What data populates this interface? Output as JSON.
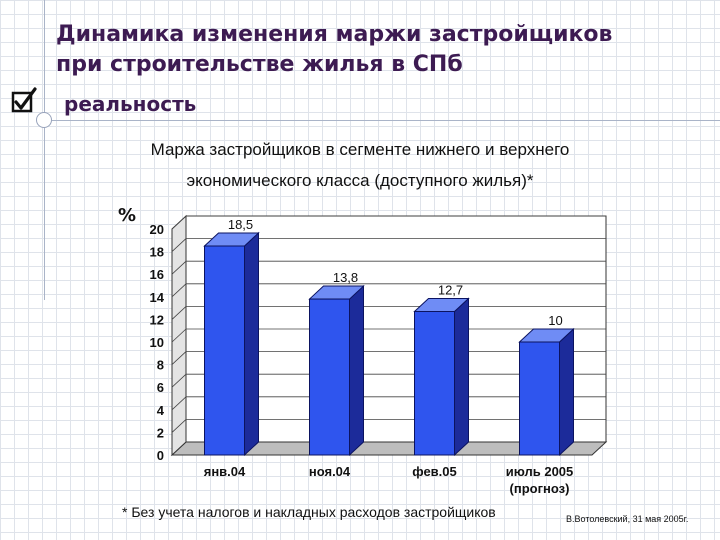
{
  "slide": {
    "title_line1": "Динамика изменения маржи застройщиков",
    "title_line2": "при строительстве жилья в СПб",
    "subtitle": "реальность",
    "chart_title_line1": "Маржа застройщиков в сегменте нижнего и верхнего",
    "chart_title_line2": "экономического класса (доступного жилья)*",
    "footnote": "* Без учета налогов и накладных расходов застройщиков",
    "author": "В.Вотолевский, 31 мая 2005г.",
    "icons": [
      "checkbox-checked-icon"
    ],
    "colors": {
      "title": "#3d1b52",
      "bar": "#2f55ee",
      "bar_side": "#1c2b9a",
      "bar_top": "#6f8cf5"
    }
  },
  "chart_data": {
    "type": "bar",
    "categories": [
      [
        "янв.04"
      ],
      [
        "ноя.04"
      ],
      [
        "фев.05"
      ],
      [
        "июль 2005",
        "(прогноз)"
      ]
    ],
    "values": [
      18.5,
      13.8,
      12.7,
      10
    ],
    "data_labels": [
      "18,5",
      "13,8",
      "12,7",
      "10"
    ],
    "ylabel": "%",
    "ylim": [
      0,
      20
    ],
    "yticks": [
      0,
      2,
      4,
      6,
      8,
      10,
      12,
      14,
      16,
      18,
      20
    ],
    "grid": true,
    "style": "3d"
  }
}
